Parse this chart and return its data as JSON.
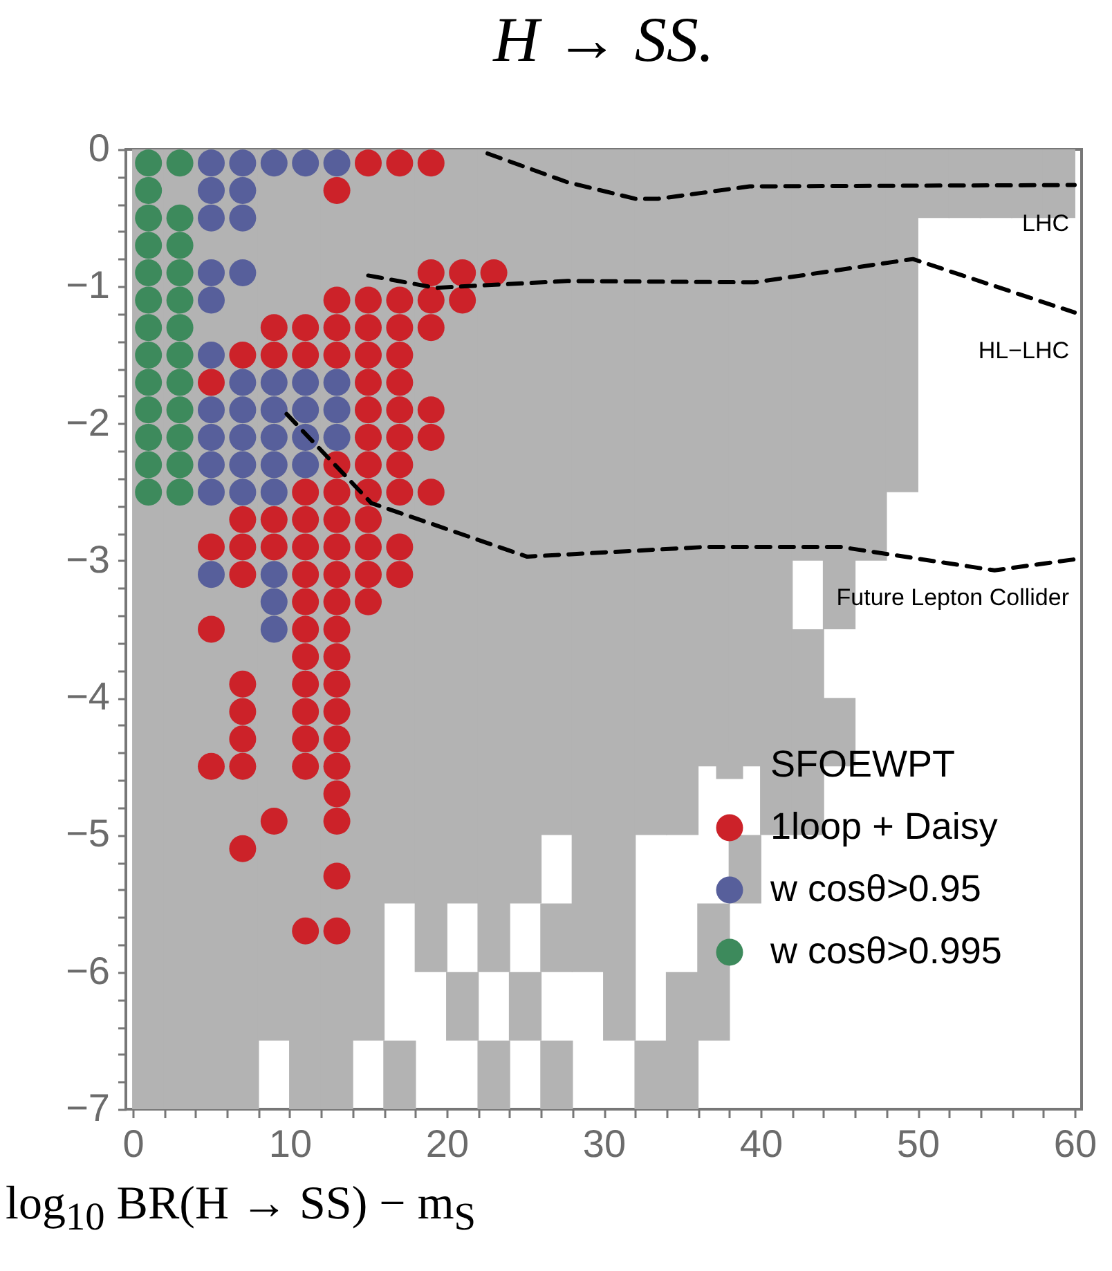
{
  "chart_data": {
    "type": "scatter",
    "title": "H → SS.",
    "xlabel": "log$_{10}$ BR(H → SS) − m$_{S}$",
    "xlim": [
      0,
      60
    ],
    "ylim": [
      -7,
      0
    ],
    "xticks": [
      0,
      {
        "value": 2,
        "label": null
      },
      {
        "value": 4,
        "label": null
      },
      {
        "value": 6,
        "label": null
      },
      {
        "value": 8,
        "label": null
      },
      10,
      {
        "value": 12,
        "label": null
      },
      {
        "value": 14,
        "label": null
      },
      {
        "value": 16,
        "label": null
      },
      {
        "value": 18,
        "label": null
      },
      20,
      {
        "value": 22,
        "label": null
      },
      {
        "value": 24,
        "label": null
      },
      {
        "value": 26,
        "label": null
      },
      {
        "value": 28,
        "label": null
      },
      30,
      {
        "value": 32,
        "label": null
      },
      {
        "value": 34,
        "label": null
      },
      {
        "value": 36,
        "label": null
      },
      {
        "value": 38,
        "label": null
      },
      40,
      {
        "value": 42,
        "label": null
      },
      {
        "value": 44,
        "label": null
      },
      {
        "value": 46,
        "label": null
      },
      {
        "value": 48,
        "label": null
      },
      50,
      {
        "value": 52,
        "label": null
      },
      {
        "value": 54,
        "label": null
      },
      {
        "value": 56,
        "label": null
      },
      {
        "value": 58,
        "label": null
      },
      60
    ],
    "yticks": [
      -7,
      {
        "value": -6.8,
        "label": null
      },
      {
        "value": -6.6,
        "label": null
      },
      {
        "value": -6.4,
        "label": null
      },
      {
        "value": -6.2,
        "label": null
      },
      -6,
      {
        "value": -5.8,
        "label": null
      },
      {
        "value": -5.6,
        "label": null
      },
      {
        "value": -5.4,
        "label": null
      },
      {
        "value": -5.2,
        "label": null
      },
      -5,
      {
        "value": -4.8,
        "label": null
      },
      {
        "value": -4.6,
        "label": null
      },
      {
        "value": -4.4,
        "label": null
      },
      {
        "value": -4.2,
        "label": null
      },
      -4,
      {
        "value": -3.8,
        "label": null
      },
      {
        "value": -3.6,
        "label": null
      },
      {
        "value": -3.4,
        "label": null
      },
      {
        "value": -3.2,
        "label": null
      },
      -3,
      {
        "value": -2.8,
        "label": null
      },
      {
        "value": -2.6,
        "label": null
      },
      {
        "value": -2.4,
        "label": null
      },
      {
        "value": -2.2,
        "label": null
      },
      -2,
      {
        "value": -1.8,
        "label": null
      },
      {
        "value": -1.6,
        "label": null
      },
      {
        "value": -1.4,
        "label": null
      },
      {
        "value": -1.2,
        "label": null
      },
      -1,
      {
        "value": -0.8,
        "label": null
      },
      {
        "value": -0.6,
        "label": null
      },
      {
        "value": -0.4,
        "label": null
      },
      {
        "value": -0.2,
        "label": null
      },
      0
    ],
    "legend": "bottom right",
    "series": [
      {
        "name": "SFOEWPT",
        "type": "bar",
        "color": "#b3b3b3",
        "x": [
          1,
          3,
          5,
          7,
          9,
          11,
          13,
          15,
          17,
          19,
          21,
          23,
          25,
          27,
          29,
          31,
          33,
          35,
          37,
          39,
          41,
          43,
          45,
          47,
          49,
          51,
          53,
          55,
          57,
          59
        ],
        "base": [
          -7,
          -7,
          -7,
          -7,
          -6.5,
          -7,
          -7,
          -6.5,
          -5.5,
          -6,
          -5.5,
          -6,
          -5.5,
          -5,
          -6,
          -6.5,
          -5,
          -5,
          -4.5,
          -4.5,
          -5,
          -3,
          -3.5,
          -3,
          -2.5,
          -0.5,
          -0.5,
          -0.5,
          -0.5,
          -0.5
        ],
        "values": [
          7,
          7,
          7,
          7,
          6.5,
          7,
          7,
          6.5,
          5.5,
          6,
          5.5,
          6,
          5.5,
          5,
          6,
          6.5,
          5,
          5,
          4.5,
          4.5,
          5,
          3,
          3.5,
          3,
          2.5,
          0.5,
          0.5,
          0.5,
          0.5,
          0.5
        ]
      },
      {
        "type": "bar",
        "color": "#b3b3b3",
        "x": [
          17,
          21,
          23,
          25,
          27,
          33,
          35,
          37,
          39,
          43,
          45
        ],
        "base": [
          -7,
          -6.5,
          -7,
          -6.5,
          -6,
          -7,
          -7,
          -6.5,
          -5.5,
          -5,
          -4.5
        ],
        "values": [
          0.5,
          0.5,
          0.5,
          0.5,
          0.5,
          0.5,
          1,
          1,
          0.5,
          1.5,
          0.5
        ]
      },
      {
        "type": "bar",
        "color": "#b3b3b3",
        "x": [
          27
        ],
        "base": [
          -7
        ],
        "values": [
          0.5
        ]
      },
      {
        "name": "1loop + Daisy",
        "color": "#cc2229",
        "marker": "circle",
        "x": [
          15,
          17,
          19,
          13,
          19,
          21,
          23,
          13,
          15,
          17,
          19,
          21,
          9,
          11,
          13,
          15,
          17,
          19,
          7,
          9,
          11,
          13,
          15,
          17,
          5,
          15,
          17,
          15,
          17,
          19,
          15,
          17,
          19,
          13,
          15,
          17,
          11,
          13,
          15,
          17,
          19,
          7,
          9,
          11,
          13,
          15,
          5,
          7,
          9,
          11,
          13,
          15,
          17,
          7,
          11,
          13,
          15,
          17,
          11,
          13,
          15,
          5,
          11,
          13,
          11,
          13,
          7,
          11,
          13,
          7,
          11,
          13,
          7,
          11,
          13,
          5,
          7,
          11,
          13,
          13,
          9,
          13,
          7,
          13,
          11,
          13
        ],
        "values": [
          -0.1,
          -0.1,
          -0.1,
          -0.3,
          -0.9,
          -0.9,
          -0.9,
          -1.1,
          -1.1,
          -1.1,
          -1.1,
          -1.1,
          -1.3,
          -1.3,
          -1.3,
          -1.3,
          -1.3,
          -1.3,
          -1.5,
          -1.5,
          -1.5,
          -1.5,
          -1.5,
          -1.5,
          -1.7,
          -1.7,
          -1.7,
          -1.9,
          -1.9,
          -1.9,
          -2.1,
          -2.1,
          -2.1,
          -2.3,
          -2.3,
          -2.3,
          -2.5,
          -2.5,
          -2.5,
          -2.5,
          -2.5,
          -2.7,
          -2.7,
          -2.7,
          -2.7,
          -2.7,
          -2.9,
          -2.9,
          -2.9,
          -2.9,
          -2.9,
          -2.9,
          -2.9,
          -3.1,
          -3.1,
          -3.1,
          -3.1,
          -3.1,
          -3.3,
          -3.3,
          -3.3,
          -3.5,
          -3.5,
          -3.5,
          -3.7,
          -3.7,
          -3.9,
          -3.9,
          -3.9,
          -4.1,
          -4.1,
          -4.1,
          -4.3,
          -4.3,
          -4.3,
          -4.5,
          -4.5,
          -4.5,
          -4.5,
          -4.7,
          -4.9,
          -4.9,
          -5.1,
          -5.3,
          -5.7,
          -5.7
        ]
      },
      {
        "name": "w cosθ>0.95",
        "color": "#575f9b",
        "marker": "circle",
        "x": [
          5,
          7,
          9,
          11,
          13,
          5,
          7,
          5,
          7,
          5,
          7,
          5,
          5,
          7,
          9,
          11,
          13,
          5,
          7,
          9,
          11,
          13,
          5,
          7,
          9,
          11,
          13,
          5,
          7,
          9,
          11,
          5,
          7,
          9,
          5,
          9,
          9,
          9
        ],
        "values": [
          -0.1,
          -0.1,
          -0.1,
          -0.1,
          -0.1,
          -0.3,
          -0.3,
          -0.5,
          -0.5,
          -0.9,
          -0.9,
          -1.1,
          -1.5,
          -1.7,
          -1.7,
          -1.7,
          -1.7,
          -1.9,
          -1.9,
          -1.9,
          -1.9,
          -1.9,
          -2.1,
          -2.1,
          -2.1,
          -2.1,
          -2.1,
          -2.3,
          -2.3,
          -2.3,
          -2.3,
          -2.5,
          -2.5,
          -2.5,
          -3.1,
          -3.1,
          -3.3,
          -3.5
        ]
      },
      {
        "name": "w cosθ>0.995",
        "color": "#3d8a5c",
        "marker": "circle",
        "x": [
          1,
          3,
          1,
          1,
          3,
          1,
          3,
          1,
          3,
          1,
          3,
          1,
          3,
          1,
          3,
          1,
          3,
          1,
          3,
          1,
          3,
          1,
          3,
          1,
          3
        ],
        "values": [
          -0.1,
          -0.1,
          -0.3,
          -0.5,
          -0.5,
          -0.7,
          -0.7,
          -0.9,
          -0.9,
          -1.1,
          -1.1,
          -1.3,
          -1.3,
          -1.5,
          -1.5,
          -1.7,
          -1.7,
          -1.9,
          -1.9,
          -2.1,
          -2.1,
          -2.3,
          -2.3,
          -2.5,
          -2.5
        ]
      },
      {
        "name": "LHC",
        "type": "line",
        "color": "#000000",
        "line_style": "dashed",
        "x": [
          22.6,
          27.7,
          32,
          33.5,
          39.3,
          60
        ],
        "values": [
          -0.03,
          -0.24,
          -0.36,
          -0.36,
          -0.27,
          -0.26
        ]
      },
      {
        "name": "HL−LHC",
        "type": "line",
        "color": "#000000",
        "line_style": "dashed",
        "x": [
          15,
          19.3,
          27.7,
          39.6,
          49.7,
          60
        ],
        "values": [
          -0.92,
          -1.01,
          -0.96,
          -0.97,
          -0.8,
          -1.19
        ]
      },
      {
        "name": "Future Lepton Collider",
        "type": "line",
        "color": "#000000",
        "line_style": "dashed",
        "x": [
          9.8,
          15.2,
          25.1,
          36.4,
          45.1,
          54.9,
          60
        ],
        "values": [
          -1.93,
          -2.58,
          -2.97,
          -2.9,
          -2.9,
          -3.07,
          -2.99
        ]
      }
    ]
  }
}
